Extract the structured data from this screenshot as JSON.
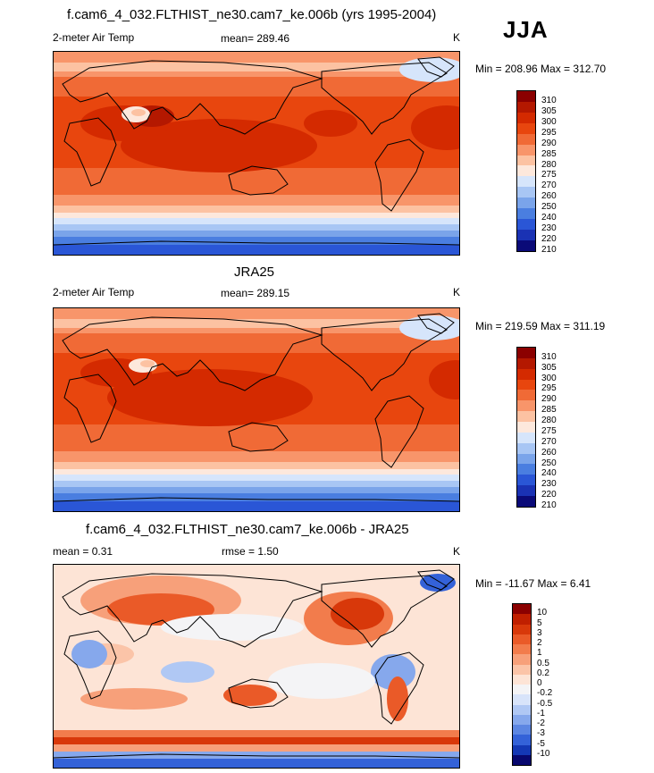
{
  "season": "JJA",
  "panels": [
    {
      "id": "model",
      "title": "f.cam6_4_032.FLTHIST_ne30.cam7_ke.006b (yrs 1995-2004)",
      "left_label": "2-meter Air Temp",
      "center_label": "mean= 289.46",
      "units": "K",
      "minmax": "Min = 208.96 Max = 312.70",
      "levels": [
        "310",
        "305",
        "300",
        "295",
        "290",
        "285",
        "280",
        "275",
        "270",
        "260",
        "250",
        "240",
        "230",
        "220",
        "210"
      ],
      "colors": [
        "#8b0000",
        "#b41800",
        "#d42a00",
        "#e8460e",
        "#f06a36",
        "#f8956a",
        "#fcc2a2",
        "#fde8dc",
        "#d6e5fb",
        "#a8c6f4",
        "#7aa4ea",
        "#4a7ee0",
        "#2a56d6",
        "#1a32b4",
        "#0a0a78"
      ]
    },
    {
      "id": "obs",
      "title": "JRA25",
      "left_label": "2-meter Air Temp",
      "center_label": "mean= 289.15",
      "units": "K",
      "minmax": "Min = 219.59 Max = 311.19",
      "levels": [
        "310",
        "305",
        "300",
        "295",
        "290",
        "285",
        "280",
        "275",
        "270",
        "260",
        "250",
        "240",
        "230",
        "220",
        "210"
      ],
      "colors": [
        "#8b0000",
        "#b41800",
        "#d42a00",
        "#e8460e",
        "#f06a36",
        "#f8956a",
        "#fcc2a2",
        "#fde8dc",
        "#d6e5fb",
        "#a8c6f4",
        "#7aa4ea",
        "#4a7ee0",
        "#2a56d6",
        "#1a32b4",
        "#0a0a78"
      ]
    },
    {
      "id": "diff",
      "title": "f.cam6_4_032.FLTHIST_ne30.cam7_ke.006b - JRA25",
      "left_label": "mean =   0.31",
      "center_label": "rmse =   1.50",
      "units": "K",
      "minmax": "Min = -11.67 Max =   6.41",
      "levels": [
        "10",
        "5",
        "3",
        "2",
        "1",
        "0.5",
        "0.2",
        "0",
        "-0.2",
        "-0.5",
        "-1",
        "-2",
        "-3",
        "-5",
        "-10"
      ],
      "colors": [
        "#8b0000",
        "#c01f00",
        "#d8380a",
        "#ea5a28",
        "#f27c4c",
        "#f7a07a",
        "#fbc4a8",
        "#fde4d6",
        "#f4f4f6",
        "#d8e4fa",
        "#b0c8f4",
        "#86a8ec",
        "#5c86e2",
        "#3462d8",
        "#1438b4",
        "#08086e"
      ]
    }
  ]
}
